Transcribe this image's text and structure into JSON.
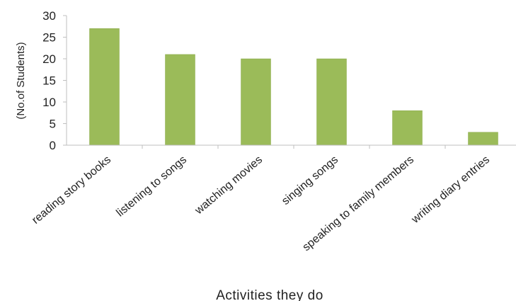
{
  "chart_data": {
    "type": "bar",
    "categories": [
      "reading story books",
      "listening to songs",
      "watching movies",
      "singing songs",
      "speaking to family members",
      "writing diary entries"
    ],
    "values": [
      27,
      21,
      20,
      20,
      8,
      3
    ],
    "xlabel": "Activities they do",
    "ylabel": "(No.of Students)",
    "ylim": [
      0,
      30
    ],
    "yticks": [
      0,
      5,
      10,
      15,
      20,
      25,
      30
    ],
    "bar_color": "#9bbb59",
    "bar_edge_color": "#8aaa4a",
    "axis_color": "#bfbfbf",
    "grid": false,
    "legend": "none"
  }
}
